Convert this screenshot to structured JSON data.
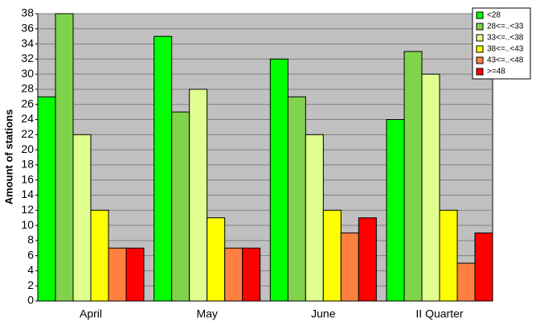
{
  "chart_data": {
    "type": "bar",
    "y_label": "Amount of stations",
    "categories": [
      "April",
      "May",
      "June",
      "II Quarter"
    ],
    "series": [
      {
        "name": "<28",
        "color": "#00ff00",
        "values": [
          27,
          35,
          32,
          24
        ]
      },
      {
        "name": "28<=..<33",
        "color": "#80d44c",
        "values": [
          38,
          25,
          27,
          33
        ]
      },
      {
        "name": "33<=..<38",
        "color": "#e0ff90",
        "values": [
          22,
          28,
          22,
          30
        ]
      },
      {
        "name": "38<=..<43",
        "color": "#ffff00",
        "values": [
          12,
          11,
          12,
          12
        ]
      },
      {
        "name": "43<=..<48",
        "color": "#ff8040",
        "values": [
          7,
          7,
          9,
          5
        ]
      },
      {
        "name": ">=48",
        "color": "#ff0000",
        "values": [
          7,
          7,
          11,
          9
        ]
      }
    ],
    "ylim": [
      0,
      38
    ],
    "yticks": [
      0,
      2,
      4,
      6,
      8,
      10,
      12,
      14,
      16,
      18,
      20,
      22,
      24,
      26,
      28,
      30,
      32,
      34,
      36,
      38
    ],
    "grid": true,
    "legend": "top-right"
  }
}
